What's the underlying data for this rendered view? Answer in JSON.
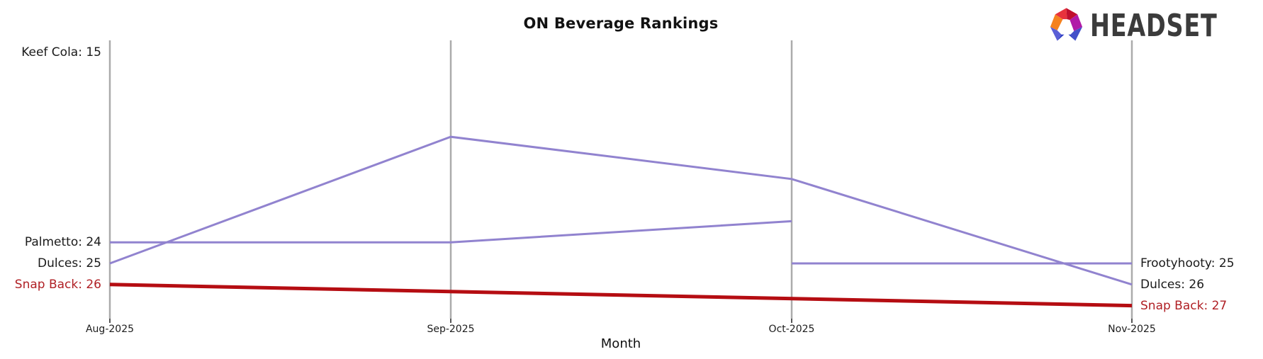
{
  "header": {
    "title": "ON Beverage Rankings"
  },
  "logo": {
    "brand_text": "HEADSET",
    "icon": "headset-faceted-ring-icon",
    "icon_colors": [
      "#f5821f",
      "#e8323c",
      "#c00f2d",
      "#b01aa7",
      "#4350c9",
      "#2b3cc4",
      "#5a5fd6"
    ]
  },
  "axis": {
    "xlabel": "Month"
  },
  "chart_data": {
    "type": "line",
    "title": "ON Beverage Rankings",
    "xlabel": "Month",
    "x": [
      "Aug-2025",
      "Sep-2025",
      "Oct-2025",
      "Nov-2025"
    ],
    "y_axis": {
      "metric": "rank",
      "inverted": true,
      "visible_rank_range": [
        15,
        27
      ],
      "gridlines": "vertical-only",
      "tick_labels_hidden": true
    },
    "legend": "none (labels at line endpoints)",
    "series": [
      {
        "name": "Keef Cola",
        "values": [
          15,
          null,
          null,
          null
        ],
        "color": "#9183cf",
        "line_width": 3,
        "left_label": "Keef Cola: 15",
        "label_color": "#1a1a1a"
      },
      {
        "name": "Palmetto",
        "values": [
          24,
          24,
          23,
          null
        ],
        "color": "#9183cf",
        "line_width": 3,
        "left_label": "Palmetto: 24",
        "label_color": "#1a1a1a"
      },
      {
        "name": "Dulces",
        "values": [
          25,
          19,
          21,
          26
        ],
        "color": "#9183cf",
        "line_width": 3,
        "left_label": "Dulces: 25",
        "right_label": "Dulces: 26",
        "label_color": "#1a1a1a"
      },
      {
        "name": "Frootyhooty",
        "values": [
          null,
          null,
          25,
          25
        ],
        "color": "#9183cf",
        "line_width": 3,
        "right_label": "Frootyhooty: 25",
        "label_color": "#1a1a1a"
      },
      {
        "name": "Snap Back",
        "values": [
          26,
          null,
          null,
          27
        ],
        "color": "#b50d12",
        "line_width": 5,
        "left_label": "Snap Back: 26",
        "right_label": "Snap Back: 27",
        "label_color": "#b02025",
        "highlighted": true
      }
    ],
    "colors": {
      "line_default": "#9183cf",
      "line_highlight": "#b50d12",
      "gridline": "#ababab",
      "axis_tick": "#2b2b2b",
      "text": "#1a1a1a"
    }
  }
}
